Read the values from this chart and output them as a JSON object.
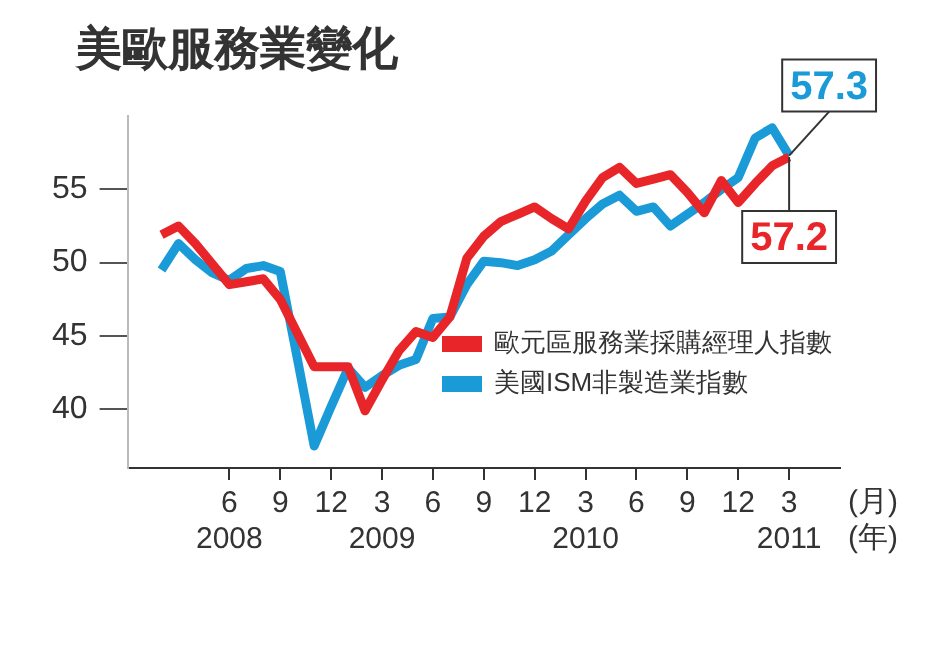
{
  "chart_data": {
    "type": "line",
    "title": "美歐服務業變化",
    "xlabel": "(月)\n(年)",
    "x": [
      "2008-02",
      "2008-03",
      "2008-04",
      "2008-05",
      "2008-06",
      "2008-07",
      "2008-08",
      "2008-09",
      "2008-10",
      "2008-11",
      "2008-12",
      "2009-01",
      "2009-02",
      "2009-03",
      "2009-04",
      "2009-05",
      "2009-06",
      "2009-07",
      "2009-08",
      "2009-09",
      "2009-10",
      "2009-11",
      "2009-12",
      "2010-01",
      "2010-02",
      "2010-03",
      "2010-04",
      "2010-05",
      "2010-06",
      "2010-07",
      "2010-08",
      "2010-09",
      "2010-10",
      "2010-11",
      "2010-12",
      "2011-01",
      "2011-02",
      "2011-03"
    ],
    "series": [
      {
        "name": "歐元區服務業採購經理人指數",
        "color": "#e8262a",
        "values": [
          51.9,
          52.5,
          51.3,
          49.9,
          48.5,
          48.7,
          48.9,
          47.5,
          45.2,
          42.9,
          42.9,
          42.9,
          39.9,
          42.0,
          44.0,
          45.3,
          44.9,
          46.3,
          50.3,
          51.8,
          52.8,
          53.3,
          53.8,
          53.0,
          52.3,
          54.2,
          55.8,
          56.5,
          55.4,
          55.7,
          56.0,
          54.8,
          53.4,
          55.6,
          54.1,
          55.4,
          56.6,
          57.2
        ]
      },
      {
        "name": "美國ISM非製造業指數",
        "color": "#1a9ad6",
        "values": [
          49.5,
          51.3,
          50.2,
          49.3,
          48.8,
          49.6,
          49.8,
          49.4,
          43.5,
          37.5,
          40.2,
          42.8,
          41.5,
          42.3,
          43.0,
          43.4,
          46.2,
          46.3,
          48.5,
          50.1,
          50.0,
          49.8,
          50.2,
          50.8,
          51.9,
          53.0,
          54.0,
          54.6,
          53.5,
          53.8,
          52.5,
          53.3,
          54.1,
          55.0,
          55.8,
          58.5,
          59.2,
          57.3
        ]
      }
    ],
    "annotations": [
      {
        "text": "57.2",
        "x": "2011-03",
        "y": 57.2
      },
      {
        "text": "57.3",
        "x": "2011-03",
        "y": 57.3
      }
    ],
    "xlim": [
      "2007-12",
      "2011-06"
    ],
    "xticks": [
      {
        "value": "2008-06",
        "label": "6\n2008"
      },
      {
        "value": "2008-09",
        "label": "9"
      },
      {
        "value": "2008-12",
        "label": "12"
      },
      {
        "value": "2009-03",
        "label": "3\n2009"
      },
      {
        "value": "2009-06",
        "label": "6"
      },
      {
        "value": "2009-09",
        "label": "9"
      },
      {
        "value": "2009-12",
        "label": "12"
      },
      {
        "value": "2010-03",
        "label": "3\n2010"
      },
      {
        "value": "2010-06",
        "label": "6"
      },
      {
        "value": "2010-09",
        "label": "9"
      },
      {
        "value": "2010-12",
        "label": "12"
      },
      {
        "value": "2011-03",
        "label": "3\n2011"
      }
    ],
    "ylim": [
      36,
      60
    ],
    "yticks": [
      40,
      45,
      50,
      55
    ],
    "grid": false,
    "legend": "bottom right",
    "marker": "none",
    "line_style": "solid"
  }
}
